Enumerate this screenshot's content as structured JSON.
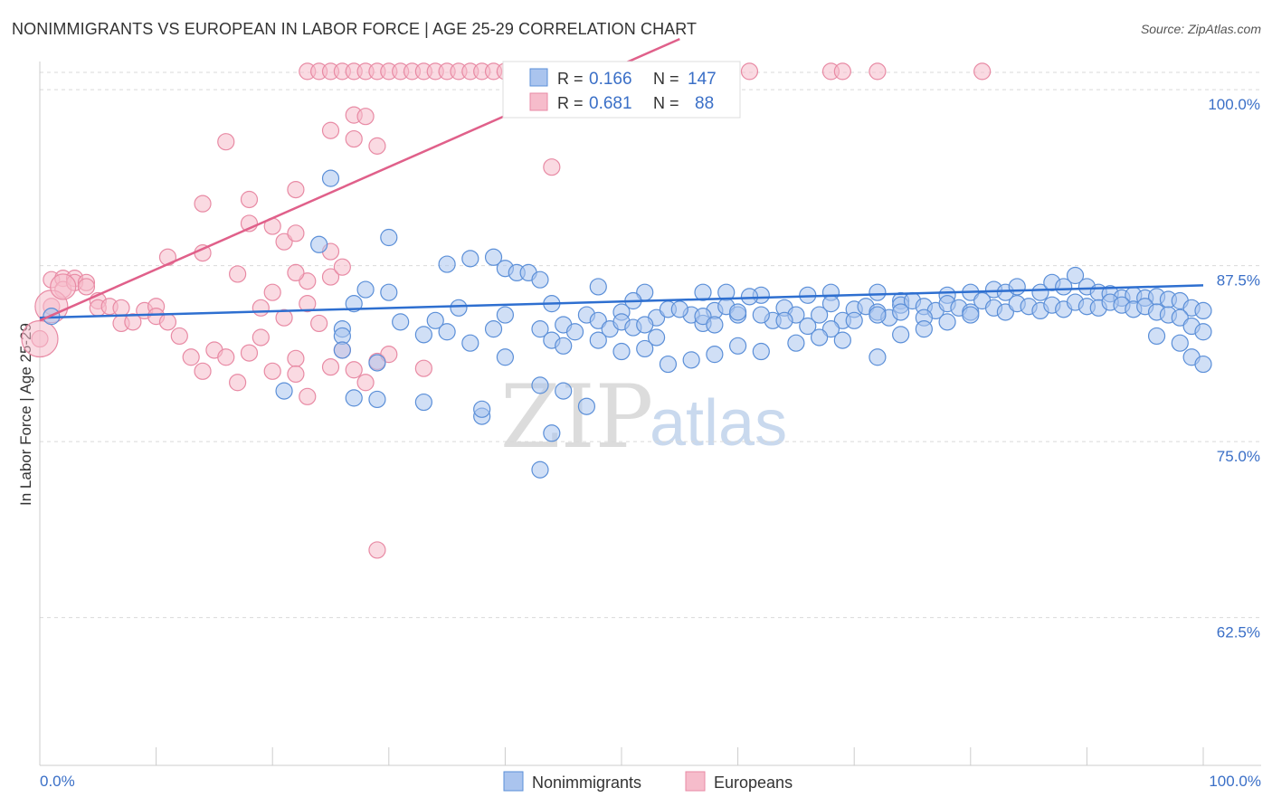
{
  "header": {
    "title": "NONIMMIGRANTS VS EUROPEAN IN LABOR FORCE | AGE 25-29 CORRELATION CHART",
    "source": "Source: ZipAtlas.com"
  },
  "colors": {
    "blue_fill": "#aac4ee",
    "blue_stroke": "#5b8fd8",
    "blue_line": "#2e6fd0",
    "pink_fill": "#f6bccb",
    "pink_stroke": "#e88aa4",
    "pink_line": "#e0608a",
    "grid": "#d9d9d9",
    "axis_label": "#3a6fc7"
  },
  "legend": {
    "rows": [
      {
        "r_label": "R = ",
        "r_value": "0.166",
        "n_label": "N = ",
        "n_value": "147"
      },
      {
        "r_label": "R = ",
        "r_value": "0.681",
        "n_label": "N = ",
        "n_value": "88"
      }
    ]
  },
  "bottom_legend": {
    "items": [
      "Nonimmigrants",
      "Europeans"
    ]
  },
  "watermark": {
    "zip": "ZIP",
    "atlas": "atlas"
  },
  "chart_data": {
    "type": "scatter",
    "title": "NONIMMIGRANTS VS EUROPEAN IN LABOR FORCE | AGE 25-29 CORRELATION CHART",
    "xlabel": "",
    "ylabel": "In Labor Force | Age 25-29",
    "xlim": [
      0,
      100
    ],
    "ylim": [
      52,
      102
    ],
    "x_tick_labels": [
      "0.0%",
      "100.0%"
    ],
    "y_ticks": [
      {
        "value": 100,
        "label": "100.0%"
      },
      {
        "value": 87.5,
        "label": "87.5%"
      },
      {
        "value": 75,
        "label": "75.0%"
      },
      {
        "value": 62.5,
        "label": "62.5%"
      }
    ],
    "grid": true,
    "legend_position": "top-center",
    "series": [
      {
        "name": "Nonimmigrants",
        "R": 0.166,
        "N": 147,
        "trend": {
          "x": [
            0,
            100
          ],
          "y": [
            83.8,
            86.1
          ]
        },
        "points": [
          [
            1,
            83.9
          ],
          [
            25,
            93.7
          ],
          [
            24,
            89.0
          ],
          [
            30,
            89.5
          ],
          [
            35,
            87.6
          ],
          [
            37,
            88.0
          ],
          [
            39,
            88.1
          ],
          [
            40,
            87.3
          ],
          [
            41,
            87.0
          ],
          [
            42,
            87.0
          ],
          [
            43,
            86.5
          ],
          [
            48,
            86.0
          ],
          [
            52,
            85.6
          ],
          [
            57,
            85.6
          ],
          [
            59,
            85.6
          ],
          [
            62,
            85.4
          ],
          [
            66,
            85.4
          ],
          [
            68,
            85.6
          ],
          [
            72,
            85.6
          ],
          [
            74,
            85.0
          ],
          [
            78,
            85.4
          ],
          [
            80,
            85.6
          ],
          [
            82,
            85.8
          ],
          [
            83,
            85.6
          ],
          [
            84,
            86.0
          ],
          [
            86,
            85.6
          ],
          [
            87,
            86.3
          ],
          [
            88,
            86.0
          ],
          [
            89,
            86.8
          ],
          [
            90,
            86.0
          ],
          [
            91,
            85.6
          ],
          [
            92,
            85.5
          ],
          [
            93,
            85.2
          ],
          [
            94,
            85.4
          ],
          [
            95,
            85.2
          ],
          [
            96,
            85.3
          ],
          [
            97,
            85.1
          ],
          [
            98,
            85.0
          ],
          [
            99,
            84.5
          ],
          [
            100,
            84.3
          ],
          [
            27,
            84.8
          ],
          [
            28,
            85.8
          ],
          [
            30,
            85.6
          ],
          [
            34,
            83.6
          ],
          [
            36,
            84.5
          ],
          [
            40,
            84.0
          ],
          [
            44,
            84.8
          ],
          [
            47,
            84.0
          ],
          [
            50,
            84.2
          ],
          [
            51,
            85.0
          ],
          [
            53,
            83.8
          ],
          [
            54,
            84.4
          ],
          [
            56,
            84.0
          ],
          [
            57,
            83.4
          ],
          [
            58,
            84.3
          ],
          [
            59,
            84.6
          ],
          [
            60,
            84.0
          ],
          [
            61,
            85.3
          ],
          [
            63,
            83.6
          ],
          [
            64,
            84.5
          ],
          [
            65,
            84.0
          ],
          [
            67,
            84.0
          ],
          [
            68,
            84.8
          ],
          [
            69,
            83.6
          ],
          [
            70,
            84.4
          ],
          [
            71,
            84.6
          ],
          [
            72,
            84.2
          ],
          [
            73,
            83.8
          ],
          [
            74,
            84.7
          ],
          [
            75,
            85.0
          ],
          [
            76,
            84.6
          ],
          [
            77,
            84.3
          ],
          [
            78,
            84.8
          ],
          [
            79,
            84.5
          ],
          [
            80,
            84.2
          ],
          [
            81,
            85.0
          ],
          [
            82,
            84.5
          ],
          [
            83,
            84.2
          ],
          [
            84,
            84.8
          ],
          [
            85,
            84.6
          ],
          [
            86,
            84.3
          ],
          [
            87,
            84.7
          ],
          [
            88,
            84.4
          ],
          [
            89,
            84.9
          ],
          [
            90,
            84.6
          ],
          [
            91,
            84.5
          ],
          [
            92,
            84.9
          ],
          [
            93,
            84.7
          ],
          [
            94,
            84.4
          ],
          [
            95,
            84.6
          ],
          [
            96,
            84.2
          ],
          [
            97,
            84.0
          ],
          [
            98,
            83.8
          ],
          [
            99,
            83.2
          ],
          [
            100,
            82.8
          ],
          [
            26,
            83.0
          ],
          [
            31,
            83.5
          ],
          [
            35,
            82.8
          ],
          [
            39,
            83.0
          ],
          [
            43,
            83.0
          ],
          [
            44,
            82.2
          ],
          [
            45,
            83.3
          ],
          [
            46,
            82.8
          ],
          [
            48,
            83.6
          ],
          [
            49,
            83.0
          ],
          [
            50,
            83.5
          ],
          [
            51,
            83.1
          ],
          [
            52,
            83.3
          ],
          [
            53,
            82.4
          ],
          [
            55,
            84.4
          ],
          [
            57,
            83.9
          ],
          [
            58,
            83.3
          ],
          [
            60,
            84.2
          ],
          [
            62,
            84.0
          ],
          [
            64,
            83.6
          ],
          [
            66,
            83.2
          ],
          [
            68,
            83.0
          ],
          [
            70,
            83.6
          ],
          [
            72,
            84.0
          ],
          [
            74,
            84.2
          ],
          [
            76,
            83.8
          ],
          [
            78,
            83.5
          ],
          [
            80,
            84.0
          ],
          [
            96,
            82.5
          ],
          [
            98,
            82.0
          ],
          [
            99,
            81.0
          ],
          [
            100,
            80.5
          ],
          [
            26,
            82.5
          ],
          [
            29,
            80.6
          ],
          [
            33,
            82.6
          ],
          [
            37,
            82.0
          ],
          [
            40,
            81.0
          ],
          [
            43,
            79.0
          ],
          [
            45,
            81.8
          ],
          [
            48,
            82.2
          ],
          [
            50,
            81.4
          ],
          [
            52,
            81.6
          ],
          [
            54,
            80.5
          ],
          [
            56,
            80.8
          ],
          [
            58,
            81.2
          ],
          [
            60,
            81.8
          ],
          [
            62,
            81.4
          ],
          [
            65,
            82.0
          ],
          [
            67,
            82.4
          ],
          [
            69,
            82.2
          ],
          [
            72,
            81.0
          ],
          [
            74,
            82.6
          ],
          [
            76,
            83.0
          ],
          [
            26,
            81.5
          ],
          [
            21,
            78.6
          ],
          [
            27,
            78.1
          ],
          [
            29,
            78.0
          ],
          [
            33,
            77.8
          ],
          [
            38,
            76.8
          ],
          [
            45,
            78.6
          ],
          [
            47,
            77.5
          ],
          [
            38,
            77.3
          ],
          [
            44,
            75.6
          ],
          [
            43,
            73.0
          ]
        ]
      },
      {
        "name": "Europeans",
        "R": 0.681,
        "N": 88,
        "trend": {
          "x": [
            0,
            55
          ],
          "y": [
            83.6,
            103.6
          ]
        },
        "points": [
          [
            0,
            82.3
          ],
          [
            1,
            84.6
          ],
          [
            1,
            86.5
          ],
          [
            2,
            86.6
          ],
          [
            2,
            85.8
          ],
          [
            3,
            86.6
          ],
          [
            3,
            86.3
          ],
          [
            4,
            86.3
          ],
          [
            4,
            86.0
          ],
          [
            5,
            85.0
          ],
          [
            5,
            84.5
          ],
          [
            6,
            84.6
          ],
          [
            7,
            84.5
          ],
          [
            7,
            83.4
          ],
          [
            8,
            83.5
          ],
          [
            9,
            84.3
          ],
          [
            10,
            84.6
          ],
          [
            10,
            83.9
          ],
          [
            11,
            83.5
          ],
          [
            12,
            82.5
          ],
          [
            13,
            81.0
          ],
          [
            14,
            80.0
          ],
          [
            15,
            81.5
          ],
          [
            16,
            81.0
          ],
          [
            17,
            79.2
          ],
          [
            18,
            81.3
          ],
          [
            19,
            84.5
          ],
          [
            19,
            82.4
          ],
          [
            20,
            80.0
          ],
          [
            21,
            83.8
          ],
          [
            22,
            80.9
          ],
          [
            23,
            84.8
          ],
          [
            24,
            83.4
          ],
          [
            25,
            80.3
          ],
          [
            26,
            81.5
          ],
          [
            27,
            80.1
          ],
          [
            28,
            79.2
          ],
          [
            29,
            80.7
          ],
          [
            11,
            88.1
          ],
          [
            14,
            88.4
          ],
          [
            18,
            90.5
          ],
          [
            20,
            90.3
          ],
          [
            21,
            89.2
          ],
          [
            22,
            89.8
          ],
          [
            23,
            86.4
          ],
          [
            25,
            86.7
          ],
          [
            26,
            87.4
          ],
          [
            20,
            85.6
          ],
          [
            22,
            87.0
          ],
          [
            17,
            86.9
          ],
          [
            14,
            91.9
          ],
          [
            16,
            96.3
          ],
          [
            18,
            92.2
          ],
          [
            22,
            92.9
          ],
          [
            25,
            97.1
          ],
          [
            27,
            96.5
          ],
          [
            27,
            98.2
          ],
          [
            28,
            98.1
          ],
          [
            29,
            96.0
          ],
          [
            44,
            94.5
          ],
          [
            23,
            101.3
          ],
          [
            24,
            101.3
          ],
          [
            25,
            101.3
          ],
          [
            26,
            101.3
          ],
          [
            27,
            101.3
          ],
          [
            28,
            101.3
          ],
          [
            29,
            101.3
          ],
          [
            30,
            101.3
          ],
          [
            31,
            101.3
          ],
          [
            32,
            101.3
          ],
          [
            33,
            101.3
          ],
          [
            34,
            101.3
          ],
          [
            35,
            101.3
          ],
          [
            36,
            101.3
          ],
          [
            37,
            101.3
          ],
          [
            38,
            101.3
          ],
          [
            39,
            101.3
          ],
          [
            40,
            101.3
          ],
          [
            41,
            101.3
          ],
          [
            42,
            101.3
          ],
          [
            51,
            101.3
          ],
          [
            55,
            101.3
          ],
          [
            58,
            101.3
          ],
          [
            61,
            101.3
          ],
          [
            68,
            101.3
          ],
          [
            69,
            101.3
          ],
          [
            72,
            101.3
          ],
          [
            81,
            101.3
          ],
          [
            25,
            88.5
          ],
          [
            30,
            81.2
          ],
          [
            23,
            78.2
          ],
          [
            29,
            67.3
          ],
          [
            22,
            79.8
          ],
          [
            33,
            80.2
          ]
        ]
      }
    ]
  }
}
